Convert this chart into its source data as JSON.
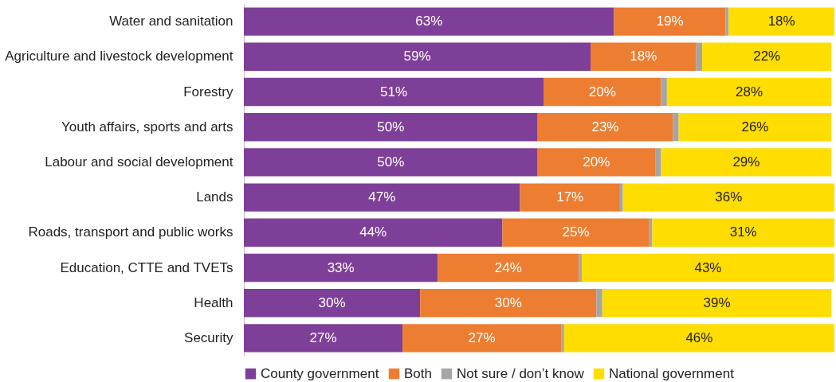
{
  "chart_data": {
    "type": "bar",
    "orientation": "horizontal",
    "stacked": true,
    "categories": [
      "Water and sanitation",
      "Agriculture and livestock development",
      "Forestry",
      "Youth affairs, sports and arts",
      "Labour and social development",
      "Lands",
      "Roads, transport and public works",
      "Education, CTTE and TVETs",
      "Health",
      "Security"
    ],
    "series": [
      {
        "name": "County government",
        "color": "#7e3f98",
        "values": [
          63,
          59,
          51,
          50,
          50,
          47,
          44,
          33,
          30,
          27
        ],
        "value_labels": [
          "63%",
          "59%",
          "51%",
          "50%",
          "50%",
          "47%",
          "44%",
          "33%",
          "30%",
          "27%"
        ]
      },
      {
        "name": "Both",
        "color": "#ed7d31",
        "values": [
          19,
          18,
          20,
          23,
          20,
          17,
          25,
          24,
          30,
          27
        ],
        "value_labels": [
          "19%",
          "18%",
          "20%",
          "23%",
          "20%",
          "17%",
          "25%",
          "24%",
          "30%",
          "27%"
        ]
      },
      {
        "name": "Not sure / don’t know",
        "color": "#a5a5a5",
        "values": [
          0.5,
          1,
          1,
          1,
          1,
          0.5,
          0.5,
          0.5,
          1,
          0.5
        ],
        "value_labels": [
          null,
          null,
          null,
          null,
          null,
          null,
          null,
          null,
          null,
          null
        ]
      },
      {
        "name": "National government",
        "color": "#ffdd00",
        "values": [
          18,
          22,
          28,
          26,
          29,
          36,
          31,
          43,
          39,
          46
        ],
        "value_labels": [
          "18%",
          "22%",
          "28%",
          "26%",
          "29%",
          "36%",
          "31%",
          "43%",
          "39%",
          "46%"
        ]
      }
    ],
    "xlim": [
      0,
      100.5
    ],
    "tick_labels": "y",
    "legend": "bottom"
  }
}
